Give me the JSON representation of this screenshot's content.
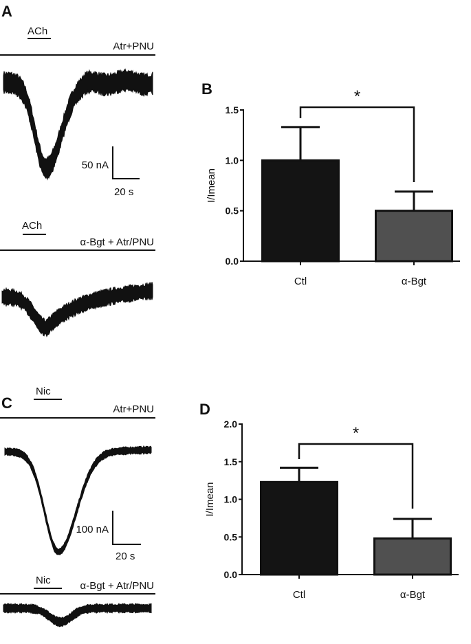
{
  "panels": {
    "A": {
      "letter": "A",
      "trace1": {
        "drug_label": "ACh",
        "condition": "Atr+PNU"
      },
      "trace2": {
        "drug_label": "ACh",
        "condition": "α-Bgt + Atr/PNU"
      },
      "scale": {
        "amplitude": "50 nA",
        "time": "20 s"
      }
    },
    "C": {
      "letter": "C",
      "trace1": {
        "drug_label": "Nic",
        "condition": "Atr+PNU"
      },
      "trace2": {
        "drug_label": "Nic",
        "condition": "α-Bgt + Atr/PNU"
      },
      "scale": {
        "amplitude": "100 nA",
        "time": "20 s"
      }
    }
  },
  "chart_data": [
    {
      "panel": "B",
      "type": "bar",
      "ylabel": "I/Imean",
      "categories": [
        "Ctl",
        "α-Bgt"
      ],
      "values": [
        1.0,
        0.5
      ],
      "error_upper": [
        1.33,
        0.69
      ],
      "ylim": [
        0,
        1.5
      ],
      "yticks": [
        "0.0",
        "0.5",
        "1.0",
        "1.5"
      ],
      "significance": "*",
      "colors": [
        "#141414",
        "#505050"
      ]
    },
    {
      "panel": "D",
      "type": "bar",
      "ylabel": "I/Imean",
      "categories": [
        "Ctl",
        "α-Bgt"
      ],
      "values": [
        1.23,
        0.48
      ],
      "error_upper": [
        1.42,
        0.74
      ],
      "ylim": [
        0,
        2.0
      ],
      "yticks": [
        "0.0",
        "0.5",
        "1.0",
        "1.5",
        "2.0"
      ],
      "significance": "*",
      "colors": [
        "#141414",
        "#505050"
      ]
    }
  ]
}
